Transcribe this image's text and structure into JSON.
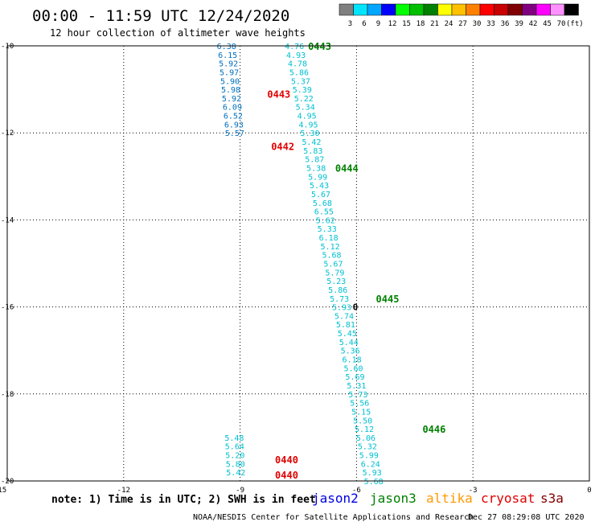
{
  "header": {
    "title": "00:00 - 11:59 UTC 12/24/2020",
    "subtitle": "12 hour collection of altimeter wave heights"
  },
  "color_scale": {
    "colors": [
      "#808080",
      "#00e5ff",
      "#00a6ff",
      "#0000ff",
      "#00ff00",
      "#00c000",
      "#008000",
      "#ffff00",
      "#ffc000",
      "#ff8000",
      "#ff0000",
      "#c80000",
      "#800000",
      "#800080",
      "#ff00ff",
      "#ff90ff",
      "#000000"
    ],
    "labels": [
      "3",
      "6",
      "9",
      "12",
      "15",
      "18",
      "21",
      "24",
      "27",
      "30",
      "33",
      "36",
      "39",
      "42",
      "45",
      "70",
      "(ft)"
    ]
  },
  "chart_data": {
    "type": "scatter",
    "xlim": [
      -15,
      0
    ],
    "ylim": [
      -20,
      -10
    ],
    "x_ticks": [
      "-15",
      "-12",
      "-9",
      "-6",
      "-3",
      "0"
    ],
    "y_ticks": [
      "-10",
      "-12",
      "-14",
      "-16",
      "-18",
      "-20"
    ],
    "grid": true,
    "series": [
      {
        "name": "jason2",
        "color": "#0070c0",
        "points": [
          {
            "lon": -9.35,
            "lat": -10.0,
            "v": "6.38"
          },
          {
            "lon": -9.32,
            "lat": -10.2,
            "v": "6.15"
          },
          {
            "lon": -9.3,
            "lat": -10.4,
            "v": "5.92"
          },
          {
            "lon": -9.28,
            "lat": -10.6,
            "v": "5.97"
          },
          {
            "lon": -9.26,
            "lat": -10.8,
            "v": "5.90"
          },
          {
            "lon": -9.24,
            "lat": -11.0,
            "v": "5.98"
          },
          {
            "lon": -9.22,
            "lat": -11.2,
            "v": "5.92"
          },
          {
            "lon": -9.2,
            "lat": -11.4,
            "v": "6.09"
          },
          {
            "lon": -9.18,
            "lat": -11.6,
            "v": "6.52"
          },
          {
            "lon": -9.16,
            "lat": -11.8,
            "v": "6.93"
          },
          {
            "lon": -9.14,
            "lat": -12.0,
            "v": "5.57"
          }
        ]
      },
      {
        "name": "jason3",
        "color": "#00c0d0",
        "points": [
          {
            "lon": -7.6,
            "lat": -10.0,
            "v": "4.76"
          },
          {
            "lon": -7.56,
            "lat": -10.2,
            "v": "4.93"
          },
          {
            "lon": -7.52,
            "lat": -10.4,
            "v": "4.78"
          },
          {
            "lon": -7.48,
            "lat": -10.6,
            "v": "5.86"
          },
          {
            "lon": -7.44,
            "lat": -10.8,
            "v": "5.37"
          },
          {
            "lon": -7.4,
            "lat": -11.0,
            "v": "5.39"
          },
          {
            "lon": -7.36,
            "lat": -11.2,
            "v": "5.22"
          },
          {
            "lon": -7.32,
            "lat": -11.4,
            "v": "5.34"
          },
          {
            "lon": -7.28,
            "lat": -11.6,
            "v": "4.95"
          },
          {
            "lon": -7.24,
            "lat": -11.8,
            "v": "4.95"
          },
          {
            "lon": -7.2,
            "lat": -12.0,
            "v": "5.30"
          },
          {
            "lon": -7.16,
            "lat": -12.2,
            "v": "5.42"
          },
          {
            "lon": -7.12,
            "lat": -12.4,
            "v": "5.83"
          },
          {
            "lon": -7.08,
            "lat": -12.6,
            "v": "5.87"
          },
          {
            "lon": -7.04,
            "lat": -12.8,
            "v": "5.38"
          },
          {
            "lon": -7.0,
            "lat": -13.0,
            "v": "5.99"
          },
          {
            "lon": -6.96,
            "lat": -13.2,
            "v": "5.43"
          },
          {
            "lon": -6.92,
            "lat": -13.4,
            "v": "5.67"
          },
          {
            "lon": -6.88,
            "lat": -13.6,
            "v": "5.68"
          },
          {
            "lon": -6.84,
            "lat": -13.8,
            "v": "6.55"
          },
          {
            "lon": -6.8,
            "lat": -14.0,
            "v": "5.62"
          },
          {
            "lon": -6.76,
            "lat": -14.2,
            "v": "5.33"
          },
          {
            "lon": -6.72,
            "lat": -14.4,
            "v": "6.18"
          },
          {
            "lon": -6.68,
            "lat": -14.6,
            "v": "5.12"
          },
          {
            "lon": -6.64,
            "lat": -14.8,
            "v": "5.68"
          },
          {
            "lon": -6.6,
            "lat": -15.0,
            "v": "5.67"
          },
          {
            "lon": -6.56,
            "lat": -15.2,
            "v": "5.79"
          },
          {
            "lon": -6.52,
            "lat": -15.4,
            "v": "5.23"
          },
          {
            "lon": -6.48,
            "lat": -15.6,
            "v": "5.86"
          },
          {
            "lon": -6.44,
            "lat": -15.8,
            "v": "5.73"
          },
          {
            "lon": -6.38,
            "lat": -16.0,
            "v": "5.93"
          },
          {
            "lon": -6.32,
            "lat": -16.2,
            "v": "5.74"
          },
          {
            "lon": -6.28,
            "lat": -16.4,
            "v": "5.81"
          },
          {
            "lon": -6.24,
            "lat": -16.6,
            "v": "5.45"
          },
          {
            "lon": -6.2,
            "lat": -16.8,
            "v": "5.44"
          },
          {
            "lon": -6.16,
            "lat": -17.0,
            "v": "5.36"
          },
          {
            "lon": -6.12,
            "lat": -17.2,
            "v": "6.18"
          },
          {
            "lon": -6.08,
            "lat": -17.4,
            "v": "5.60"
          },
          {
            "lon": -6.04,
            "lat": -17.6,
            "v": "5.69"
          },
          {
            "lon": -6.0,
            "lat": -17.8,
            "v": "5.31"
          },
          {
            "lon": -5.96,
            "lat": -18.0,
            "v": "5.73"
          },
          {
            "lon": -5.92,
            "lat": -18.2,
            "v": "5.56"
          },
          {
            "lon": -5.88,
            "lat": -18.4,
            "v": "5.15"
          },
          {
            "lon": -5.84,
            "lat": -18.6,
            "v": "5.50"
          },
          {
            "lon": -5.8,
            "lat": -18.8,
            "v": "5.12"
          },
          {
            "lon": -5.76,
            "lat": -19.0,
            "v": "5.06"
          },
          {
            "lon": -5.72,
            "lat": -19.2,
            "v": "5.32"
          },
          {
            "lon": -5.68,
            "lat": -19.4,
            "v": "5.99"
          },
          {
            "lon": -5.64,
            "lat": -19.6,
            "v": "6.24"
          },
          {
            "lon": -5.6,
            "lat": -19.8,
            "v": "5.93"
          },
          {
            "lon": -5.56,
            "lat": -20.0,
            "v": "5.68"
          }
        ]
      },
      {
        "name": "jason2",
        "color": "#00c0d0",
        "points": [
          {
            "lon": -9.15,
            "lat": -19.0,
            "v": "5.48"
          },
          {
            "lon": -9.14,
            "lat": -19.2,
            "v": "5.64"
          },
          {
            "lon": -9.13,
            "lat": -19.4,
            "v": "5.20"
          },
          {
            "lon": -9.12,
            "lat": -19.6,
            "v": "5.80"
          },
          {
            "lon": -9.11,
            "lat": -19.8,
            "v": "5.42"
          }
        ]
      }
    ],
    "time_labels": [
      {
        "lon": -7.25,
        "lat": -10.0,
        "text": "0443",
        "color": "#008000"
      },
      {
        "lon": -8.3,
        "lat": -11.1,
        "text": "0443",
        "color": "#e00000"
      },
      {
        "lon": -8.2,
        "lat": -12.3,
        "text": "0442",
        "color": "#e00000"
      },
      {
        "lon": -6.55,
        "lat": -12.8,
        "text": "0444",
        "color": "#008000"
      },
      {
        "lon": -5.5,
        "lat": -15.8,
        "text": "0445",
        "color": "#008000"
      },
      {
        "lon": -4.3,
        "lat": -18.8,
        "text": "0446",
        "color": "#008000"
      },
      {
        "lon": -8.1,
        "lat": -19.5,
        "text": "0440",
        "color": "#e00000"
      },
      {
        "lon": -8.1,
        "lat": -19.85,
        "text": "0440",
        "color": "#e00000"
      }
    ],
    "marker": {
      "lon": -6.1,
      "lat": -16.0,
      "text": "0"
    }
  },
  "footer": {
    "note": "note: 1) Time is in UTC; 2) SWH is in feet",
    "satellites": [
      {
        "name": "jason2",
        "color": "#0000e0"
      },
      {
        "name": "jason3",
        "color": "#008000"
      },
      {
        "name": "altika",
        "color": "#ff9900"
      },
      {
        "name": "cryosat",
        "color": "#e00000"
      },
      {
        "name": "s3a",
        "color": "#800000"
      }
    ],
    "credit": "NOAA/NESDIS Center for Satellite Applications and Research",
    "timestamp": "Dec 27 08:29:08 UTC 2020"
  }
}
